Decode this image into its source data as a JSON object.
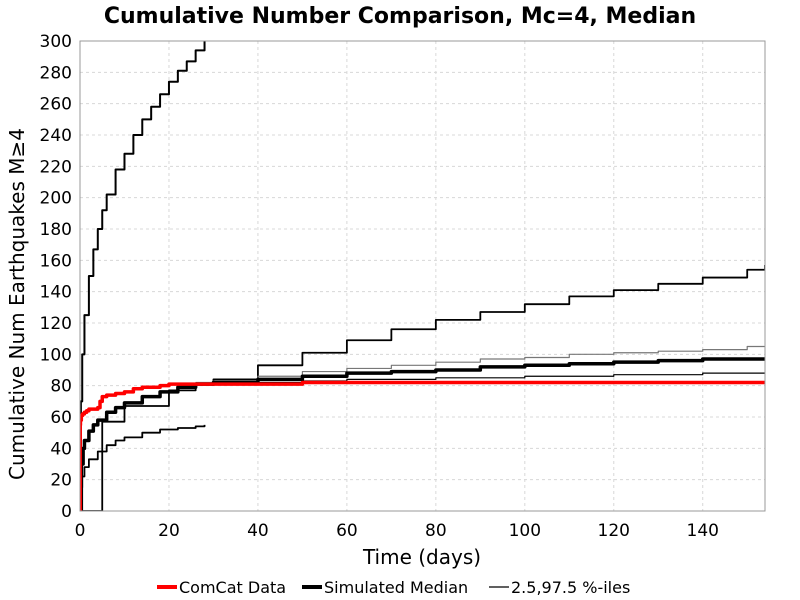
{
  "chart_data": {
    "type": "line",
    "title": "Cumulative Number Comparison, Mc=4, Median",
    "xlabel": "Time (days)",
    "ylabel": "Cumulative Num Earthquakes M≥4",
    "xlim": [
      0,
      154
    ],
    "ylim": [
      0,
      300
    ],
    "xticks": [
      0,
      20,
      40,
      60,
      80,
      100,
      120,
      140
    ],
    "yticks": [
      0,
      20,
      40,
      60,
      80,
      100,
      120,
      140,
      160,
      180,
      200,
      220,
      240,
      260,
      280,
      300
    ],
    "grid": true,
    "legend_position": "bottom",
    "legend": [
      {
        "label": "ComCat Data",
        "color": "#ff0000",
        "style": "thick"
      },
      {
        "label": "Simulated Median",
        "color": "#000000",
        "style": "thick"
      },
      {
        "label": "2.5,97.5 %-iles",
        "color": "#000000",
        "style": "thin"
      }
    ],
    "series": [
      {
        "name": "2.5,97.5 %-iles",
        "color": "#000000",
        "width": 2,
        "x": [
          0,
          0.2,
          0.5,
          1,
          2,
          3,
          4,
          5,
          6,
          8,
          10,
          12,
          14,
          16,
          18,
          20,
          22,
          24,
          26,
          28
        ],
        "y": [
          0,
          70,
          100,
          125,
          150,
          167,
          180,
          192,
          202,
          218,
          228,
          240,
          250,
          258,
          266,
          274,
          281,
          287,
          294,
          300
        ]
      },
      {
        "name": "2.5,97.5 %-iles",
        "color": "#000000",
        "width": 1.8,
        "x": [
          0,
          5,
          10,
          20,
          26,
          30,
          40,
          50,
          60,
          70,
          80,
          90,
          100,
          110,
          120,
          130,
          140,
          150,
          154
        ],
        "y": [
          0,
          57,
          67,
          77,
          81,
          84,
          93,
          101,
          109,
          116,
          122,
          127,
          132,
          137,
          141,
          145,
          149,
          154,
          157
        ]
      },
      {
        "name": "2.5,97.5 %-iles",
        "color": "#000000",
        "width": 1.8,
        "x": [
          0,
          0.2,
          0.5,
          1,
          2,
          4,
          6,
          8,
          10,
          14,
          18,
          22,
          26,
          28
        ],
        "y": [
          0,
          15,
          22,
          28,
          33,
          38,
          42,
          45,
          47,
          50,
          52,
          53,
          54,
          55
        ]
      },
      {
        "name": "2.5,97.5 %-iles",
        "color": "#777777",
        "width": 1.2,
        "x": [
          26,
          30,
          40,
          50,
          60,
          70,
          80,
          90,
          100,
          110,
          120,
          130,
          140,
          150,
          154
        ],
        "y": [
          82,
          83,
          86,
          89,
          91,
          93,
          95,
          97,
          98,
          100,
          101,
          102,
          103,
          105,
          105
        ]
      },
      {
        "name": "2.5,97.5 %-iles",
        "color": "#000000",
        "width": 1.2,
        "x": [
          26,
          30,
          40,
          50,
          60,
          70,
          80,
          90,
          100,
          110,
          120,
          130,
          140,
          150,
          154
        ],
        "y": [
          81,
          81,
          82,
          83,
          84,
          84,
          85,
          85,
          86,
          86,
          87,
          87,
          88,
          88,
          88
        ]
      },
      {
        "name": "Simulated Median",
        "color": "#000000",
        "width": 3.5,
        "x": [
          0,
          0.3,
          0.7,
          1,
          2,
          3,
          4,
          6,
          8,
          10,
          14,
          18,
          22,
          26,
          30,
          40,
          50,
          60,
          70,
          80,
          90,
          100,
          110,
          120,
          130,
          140,
          150,
          154
        ],
        "y": [
          0,
          30,
          40,
          45,
          51,
          55,
          58,
          63,
          66,
          69,
          73,
          76,
          79,
          81,
          82,
          84,
          86,
          88,
          89,
          90,
          92,
          93,
          94,
          95,
          96,
          97,
          97,
          97
        ]
      },
      {
        "name": "ComCat Data",
        "color": "#ff0000",
        "width": 3.5,
        "x": [
          0,
          0.05,
          0.1,
          0.3,
          0.6,
          1,
          1.5,
          2,
          3,
          4,
          4.5,
          5,
          6,
          7,
          8,
          10,
          12,
          14,
          16,
          18,
          20,
          24,
          30,
          48,
          50,
          154
        ],
        "y": [
          0,
          55,
          58,
          61,
          62,
          63,
          64,
          65,
          65,
          66,
          70,
          73,
          74,
          74,
          75,
          76,
          78,
          79,
          79,
          80,
          81,
          81,
          81,
          81,
          82,
          82
        ]
      }
    ]
  }
}
